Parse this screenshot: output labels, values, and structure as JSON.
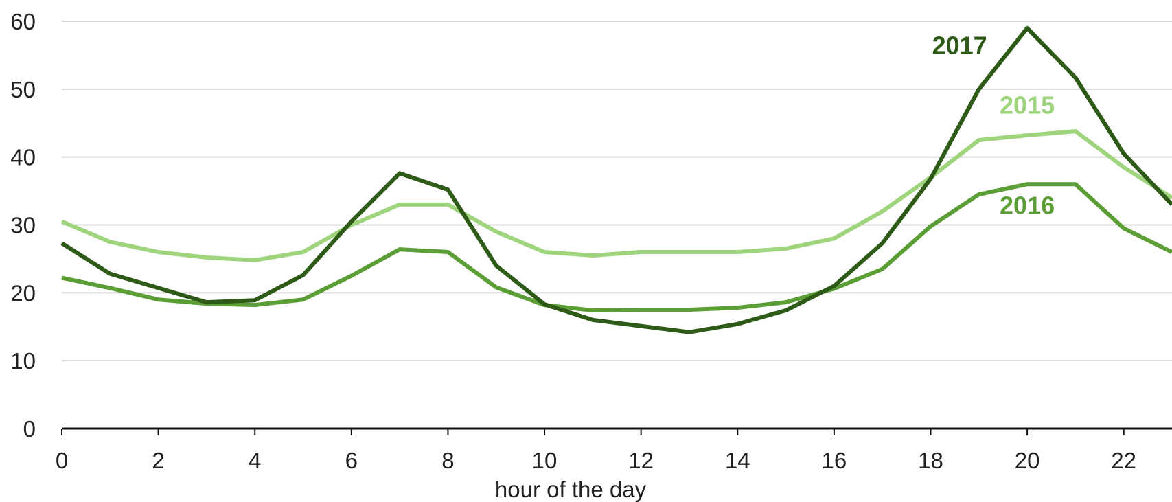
{
  "chart_data": {
    "type": "line",
    "title": "",
    "subtitle": "",
    "xlabel": "hour of the day",
    "ylabel": "",
    "x": [
      0,
      1,
      2,
      3,
      4,
      5,
      6,
      7,
      8,
      9,
      10,
      11,
      12,
      13,
      14,
      15,
      16,
      17,
      18,
      19,
      20,
      21,
      22,
      23
    ],
    "xlim": [
      0,
      23
    ],
    "ylim": [
      0,
      60
    ],
    "xticks": [
      0,
      2,
      4,
      6,
      8,
      10,
      12,
      14,
      16,
      18,
      20,
      22
    ],
    "yticks": [
      0,
      10,
      20,
      30,
      40,
      50,
      60
    ],
    "grid": true,
    "legend": "none",
    "series": [
      {
        "name": "2015",
        "color": "#9ed47c",
        "values": [
          30.5,
          27.5,
          26,
          25.2,
          24.8,
          26,
          30,
          33,
          33,
          29,
          26,
          25.5,
          26,
          26,
          26,
          26.5,
          28,
          32,
          37,
          42.5,
          43.2,
          43.8,
          38.5,
          34
        ]
      },
      {
        "name": "2016",
        "color": "#5b9e36",
        "values": [
          22.2,
          20.7,
          19,
          18.4,
          18.2,
          19,
          22.5,
          26.4,
          26,
          20.8,
          18.2,
          17.4,
          17.5,
          17.5,
          17.8,
          18.6,
          20.6,
          23.5,
          29.8,
          34.5,
          36,
          36,
          29.5,
          26
        ]
      },
      {
        "name": "2017",
        "color": "#2d5a16",
        "values": [
          27.3,
          22.8,
          20.7,
          18.6,
          18.9,
          22.6,
          30.5,
          37.6,
          35.2,
          24,
          18.3,
          16,
          15.1,
          14.2,
          15.4,
          17.4,
          21,
          27.3,
          36.8,
          50,
          59,
          51.7,
          40.5,
          33
        ]
      }
    ],
    "annotations": [
      {
        "text": "2017",
        "x": 18.6,
        "y": 55.2,
        "series": "2017"
      },
      {
        "text": "2015",
        "x": 20.0,
        "y": 46.4,
        "series": "2015"
      },
      {
        "text": "2016",
        "x": 20.0,
        "y": 31.6,
        "series": "2016"
      }
    ]
  }
}
